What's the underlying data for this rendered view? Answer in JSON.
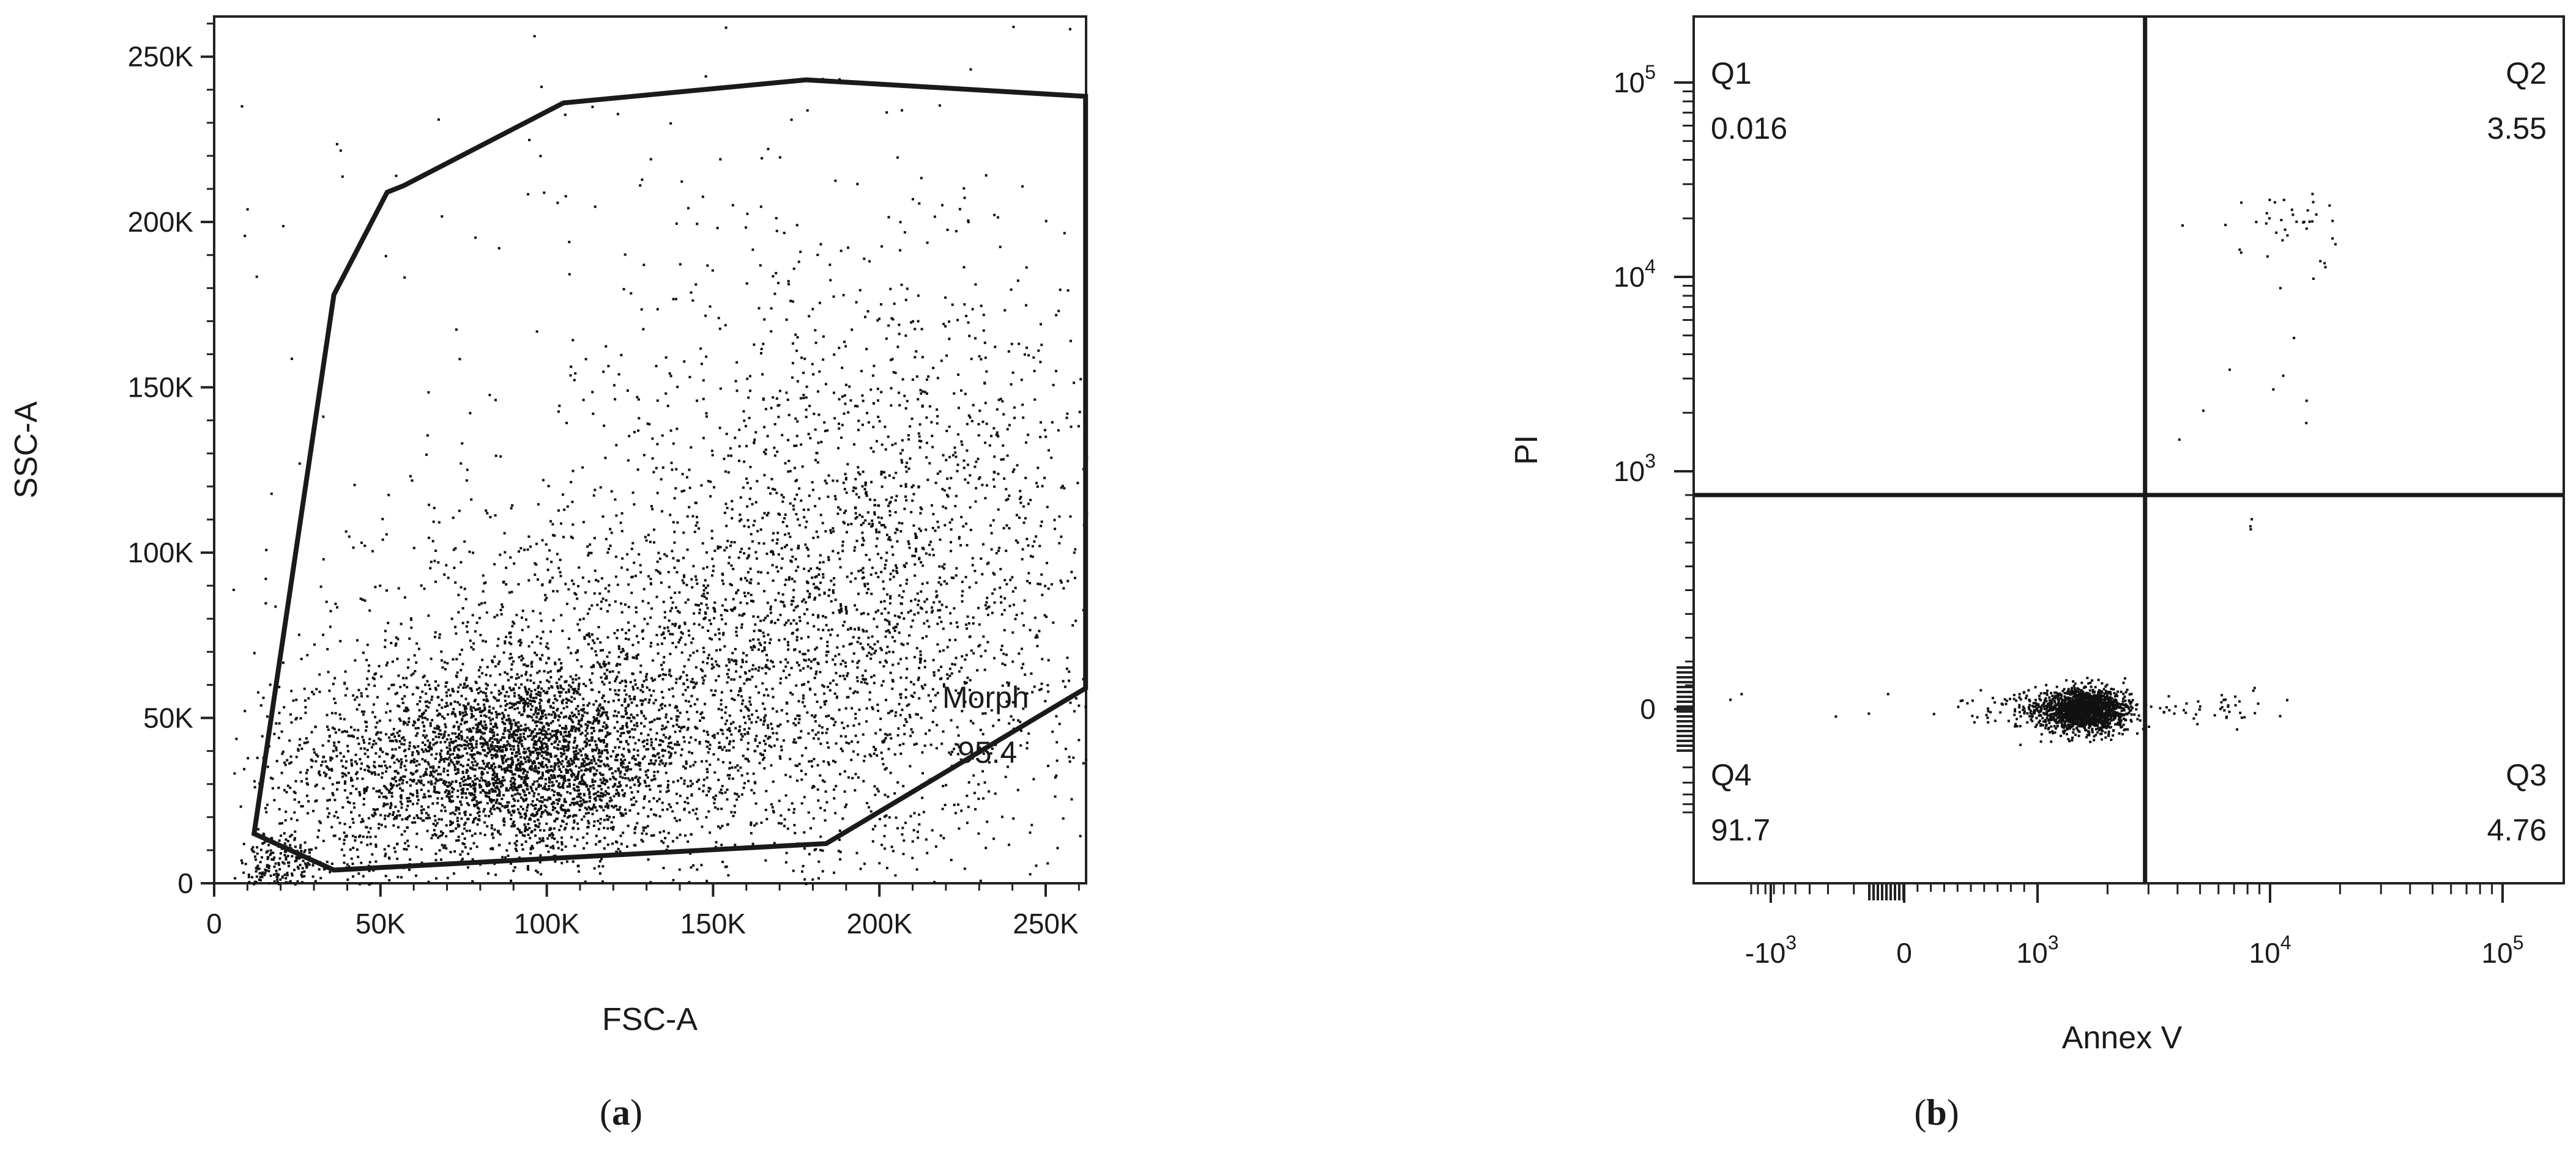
{
  "chart_data": [
    {
      "type": "scatter",
      "panel_label": "a",
      "xlabel": "FSC-A",
      "ylabel": "SSC-A",
      "xlim": [
        0,
        262144
      ],
      "ylim": [
        0,
        262144
      ],
      "x_ticks": [
        0,
        50000,
        100000,
        150000,
        200000,
        250000
      ],
      "x_tick_labels": [
        "0",
        "50K",
        "100K",
        "150K",
        "200K",
        "250K"
      ],
      "y_ticks": [
        0,
        50000,
        100000,
        150000,
        200000,
        250000
      ],
      "y_tick_labels": [
        "0",
        "50K",
        "100K",
        "150K",
        "200K",
        "250K"
      ],
      "gate": {
        "name": "Morph",
        "percent": "95.4",
        "vertices": [
          [
            12000,
            15000
          ],
          [
            36000,
            178000
          ],
          [
            52000,
            209000
          ],
          [
            57000,
            211000
          ],
          [
            105000,
            236000
          ],
          [
            178000,
            243000
          ],
          [
            262000,
            238000
          ],
          [
            262000,
            59000
          ],
          [
            184000,
            12000
          ],
          [
            36000,
            4000
          ]
        ]
      },
      "populations": [
        {
          "center": [
            92000,
            37000
          ],
          "spread": [
            24000,
            14000
          ],
          "count": 2600
        },
        {
          "center": [
            140000,
            60000
          ],
          "spread": [
            50000,
            30000
          ],
          "count": 2200
        },
        {
          "center": [
            200000,
            100000
          ],
          "spread": [
            38000,
            45000
          ],
          "count": 1600
        },
        {
          "center": [
            40000,
            30000
          ],
          "spread": [
            18000,
            18000
          ],
          "count": 500
        },
        {
          "center": [
            20000,
            6000
          ],
          "spread": [
            6000,
            4000
          ],
          "count": 180
        },
        {
          "center": [
            150000,
            150000
          ],
          "spread": [
            70000,
            60000
          ],
          "count": 250
        }
      ]
    },
    {
      "type": "scatter",
      "panel_label": "b",
      "xlabel": "Annex V",
      "ylabel": "PI",
      "x_scale": "biexponential",
      "y_scale": "biexponential",
      "x_tick_labels": [
        {
          "base": "-10",
          "exp": "3",
          "value": -1000
        },
        {
          "base": "0",
          "exp": "",
          "value": 0
        },
        {
          "base": "10",
          "exp": "3",
          "value": 1000
        },
        {
          "base": "10",
          "exp": "4",
          "value": 10000
        },
        {
          "base": "10",
          "exp": "5",
          "value": 100000
        }
      ],
      "y_tick_labels": [
        {
          "base": "0",
          "exp": "",
          "value": 0
        },
        {
          "base": "10",
          "exp": "3",
          "value": 1000
        },
        {
          "base": "10",
          "exp": "4",
          "value": 10000
        },
        {
          "base": "10",
          "exp": "5",
          "value": 100000
        }
      ],
      "quadrant_gate": {
        "x": 2900,
        "y": 900
      },
      "quadrants": [
        {
          "name": "Q1",
          "percent": "0.016",
          "position": "top-left"
        },
        {
          "name": "Q2",
          "percent": "3.55",
          "position": "top-right"
        },
        {
          "name": "Q3",
          "percent": "4.76",
          "position": "bottom-right"
        },
        {
          "name": "Q4",
          "percent": "91.7",
          "position": "bottom-left"
        }
      ],
      "populations": [
        {
          "center": [
            1550,
            0
          ],
          "spread": [
            380,
            45
          ],
          "count": 1600
        },
        {
          "center": [
            4500,
            10
          ],
          "spread": [
            3000,
            40
          ],
          "count": 60
        },
        {
          "center": [
            13000,
            18000
          ],
          "spread": [
            3500,
            5000
          ],
          "count": 40
        },
        {
          "center": [
            9000,
            2000
          ],
          "spread": [
            3000,
            800
          ],
          "count": 10
        }
      ]
    }
  ]
}
